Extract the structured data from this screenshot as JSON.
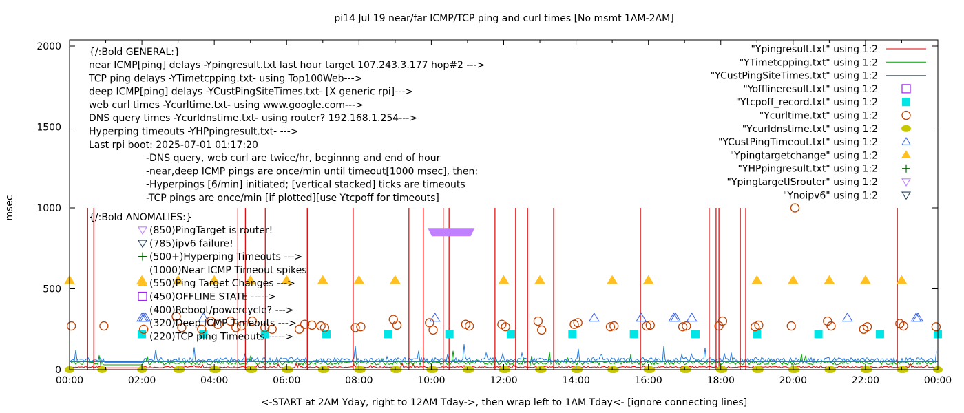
{
  "chart_data": {
    "type": "line",
    "title": "pi14 Jul 19  near/far ICMP/TCP ping and curl times [No msmt 1AM-2AM]",
    "xlabel": "<-START at 2AM Yday, right to 12AM Tday->, then wrap left to 1AM Tday<- [ignore connecting lines]",
    "ylabel": "msec",
    "xlim_hours": [
      0,
      24
    ],
    "ylim": [
      0,
      2000
    ],
    "x_ticks": [
      "00:00",
      "02:00",
      "04:00",
      "06:00",
      "08:00",
      "10:00",
      "12:00",
      "14:00",
      "16:00",
      "18:00",
      "20:00",
      "22:00",
      "00:00"
    ],
    "y_ticks": [
      "0",
      "500",
      "1000",
      "1500",
      "2000"
    ],
    "y_tick_values": [
      0,
      500,
      1000,
      1500,
      2000
    ],
    "legend_position": "top-right",
    "legend": [
      {
        "label": "\"Ypingresult.txt\" using 1:2",
        "style": "line",
        "color": "#e00000"
      },
      {
        "label": "\"YTimetcpping.txt\" using 1:2",
        "style": "line",
        "color": "#00a000"
      },
      {
        "label": "\"YCustPingSiteTimes.txt\" using 1:2",
        "style": "line",
        "color": "#1e78e0"
      },
      {
        "label": "\"Yofflineresult.txt\" using 1:2",
        "style": "open-square",
        "color": "#a020f0"
      },
      {
        "label": "\"Ytcpoff_record.txt\" using 1:2",
        "style": "filled-square",
        "color": "#00e5e5"
      },
      {
        "label": "\"Ycurltime.txt\" using 1:2",
        "style": "open-circle",
        "color": "#c04000"
      },
      {
        "label": "\"Ycurldnstime.txt\" using 1:2",
        "style": "filled-circle",
        "color": "#c8c800"
      },
      {
        "label": "\"YCustPingTimeout.txt\" using 1:2",
        "style": "open-triangle-up",
        "color": "#4169e1"
      },
      {
        "label": "\"Ypingtargetchange\" using 1:2",
        "style": "filled-triangle-up",
        "color": "#ffc020"
      },
      {
        "label": "\"YHPpingresult.txt\" using 1:2",
        "style": "plus",
        "color": "#006400"
      },
      {
        "label": "\"YpingtargetISrouter\" using 1:2",
        "style": "open-triangle-down",
        "color": "#c080ff"
      },
      {
        "label": "\"Ynoipv6\" using 1:2",
        "style": "open-triangle-down",
        "color": "#204060"
      }
    ],
    "annotations": {
      "general_header": "{/:Bold GENERAL:}",
      "general_lines": [
        "near ICMP[ping] delays -Ypingresult.txt last hour target 107.243.3.177 hop#2 --->",
        "TCP ping delays -YTimetcpping.txt- using Top100Web--->",
        "deep ICMP[ping] delays -YCustPingSiteTimes.txt- [X generic rpi]--->",
        "web curl times -Ycurltime.txt- using www.google.com--->",
        "DNS query times -Ycurldnstime.txt- using router? 192.168.1.254--->",
        "Hyperping timeouts -YHPpingresult.txt- --->",
        "Last rpi boot: 2025-07-01 01:17:20"
      ],
      "general_notes": [
        "-DNS query, web curl are twice/hr, beginnng and end of hour",
        "-near,deep ICMP pings are once/min until timeout[1000 msec], then:",
        "  -Hyperpings [6/min] initiated; [vertical stacked] ticks are timeouts",
        "-TCP pings are once/min [if plotted][use Ytcpoff for timeouts]"
      ],
      "anomalies_header": "{/:Bold ANOMALIES:}",
      "anomalies": [
        {
          "text": "(850)PingTarget is router!",
          "marker": "open-triangle-down",
          "color": "#c080ff"
        },
        {
          "text": "(785)ipv6 failure!",
          "marker": "open-triangle-down",
          "color": "#204060"
        },
        {
          "text": "(500+)Hyperping Timeouts --->",
          "marker": "plus",
          "color": "#006400"
        },
        {
          "text": "(1000)Near ICMP Timeout spikes",
          "marker": "none",
          "color": ""
        },
        {
          "text": "(550)Ping Target Changes --->",
          "marker": "filled-triangle-up",
          "color": "#ffc020"
        },
        {
          "text": "(450)OFFLINE STATE ----->",
          "marker": "open-square",
          "color": "#a020f0"
        },
        {
          "text": "(400)Reboot/powercycle? --->",
          "marker": "none",
          "color": ""
        },
        {
          "text": "(320)Deep ICMP Timeouts --->",
          "marker": "none",
          "color": ""
        },
        {
          "text": "(220)TCP ping Timeouts ----->",
          "marker": "none",
          "color": ""
        }
      ]
    },
    "series": {
      "near_icmp_timeout_spikes_hours": [
        0.5,
        0.67,
        4.65,
        4.86,
        5.41,
        6.57,
        6.59,
        7.84,
        9.38,
        9.78,
        10.33,
        10.49,
        11.76,
        12.33,
        12.66,
        13.38,
        15.78,
        17.68,
        17.87,
        17.95,
        18.54,
        18.69,
        22.88
      ],
      "near_icmp_baseline_msec": 12,
      "tcp_ping_baseline_msec": 30,
      "deep_icmp_baseline_msec": 45,
      "ping_target_is_router": {
        "x_range_hours": [
          9.9,
          11.2
        ],
        "y": 850
      },
      "ping_target_changes": {
        "x_hours": [
          0,
          2,
          3,
          4,
          5,
          6,
          7,
          8,
          9,
          12,
          13,
          15,
          16,
          19,
          20,
          21,
          22,
          23
        ],
        "y": 550
      },
      "tcp_ping_timeouts": {
        "x_hours": [
          2,
          3.7,
          5.4,
          7.1,
          8.8,
          10.5,
          12.2,
          13.9,
          15.6,
          17.3,
          19,
          20.7,
          22.4,
          24
        ],
        "y": 220
      },
      "deep_icmp_timeouts": {
        "x_hours": [
          2.0,
          2.05,
          2.1,
          3.7,
          10.1,
          14.5,
          15.8,
          16.7,
          16.75,
          17.2,
          21.5,
          23.4,
          23.45
        ],
        "y": 320
      },
      "curl_times": {
        "x_hours": [
          0.05,
          0.95,
          2.05,
          2.95,
          3.1,
          3.65,
          3.9,
          4.1,
          4.45,
          4.6,
          4.75,
          5.05,
          5.4,
          5.6,
          6.35,
          6.5,
          6.7,
          6.95,
          7.05,
          7.9,
          8.05,
          8.95,
          9.05,
          9.95,
          10.05,
          10.95,
          11.05,
          11.95,
          12.05,
          12.95,
          13.05,
          13.95,
          14.05,
          14.95,
          15.05,
          15.95,
          16.05,
          16.95,
          17.05,
          17.95,
          18.05,
          18.95,
          19.05,
          19.95,
          20.05,
          20.95,
          21.05,
          21.95,
          22.05,
          22.95,
          23.05,
          23.95
        ],
        "y": [
          270,
          270,
          250,
          330,
          260,
          250,
          300,
          280,
          300,
          260,
          270,
          300,
          260,
          250,
          250,
          280,
          275,
          270,
          260,
          260,
          265,
          310,
          275,
          290,
          245,
          280,
          270,
          280,
          265,
          300,
          245,
          280,
          290,
          265,
          270,
          270,
          275,
          265,
          270,
          270,
          300,
          265,
          275,
          270,
          1000,
          300,
          270,
          250,
          265,
          285,
          270,
          265
        ]
      },
      "dns_query_times": {
        "x_hours": [
          0,
          0.9,
          2,
          3,
          3.05,
          4,
          4.05,
          5,
          5.05,
          6,
          6.05,
          7,
          7.05,
          8,
          8.05,
          9,
          9.05,
          10,
          10.05,
          11,
          11.05,
          12,
          12.05,
          13,
          13.05,
          14,
          14.05,
          15,
          15.05,
          16,
          16.05,
          17,
          17.05,
          18,
          18.05,
          19,
          19.05,
          20,
          20.05,
          21,
          21.05,
          22,
          22.05,
          23,
          23.05,
          24
        ],
        "y": 0
      },
      "offline_state": [],
      "hyperping_timeouts": [],
      "no_ipv6": []
    }
  }
}
